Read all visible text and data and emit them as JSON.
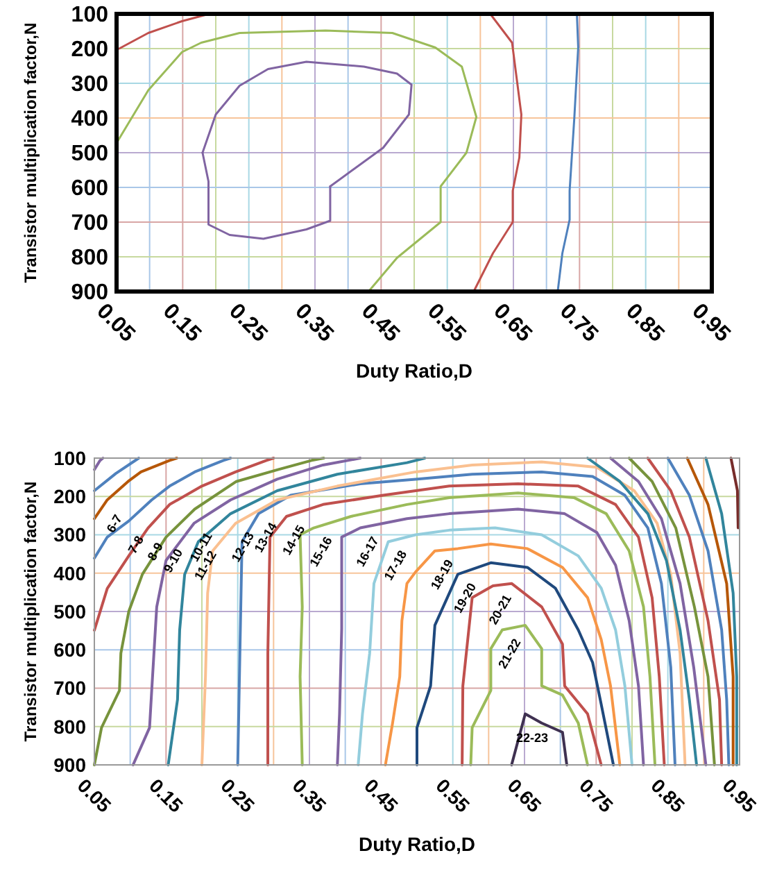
{
  "chart_data": [
    {
      "type": "line",
      "xlabel": "Duty Ratio,D",
      "ylabel": "Transistor multiplication factor,N",
      "xlim": [
        0.05,
        0.95
      ],
      "ylim": [
        900,
        100
      ],
      "xticks": [
        0.05,
        {
          "value": 0.1,
          "label": null
        },
        0.15,
        {
          "value": 0.2,
          "label": null
        },
        0.25,
        {
          "value": 0.3,
          "label": null
        },
        0.35,
        {
          "value": 0.4,
          "label": null
        },
        0.45,
        {
          "value": 0.5,
          "label": null
        },
        0.55,
        {
          "value": 0.6,
          "label": null
        },
        0.65,
        {
          "value": 0.7,
          "label": null
        },
        0.75,
        {
          "value": 0.8,
          "label": null
        },
        0.85,
        {
          "value": 0.9,
          "label": null
        },
        0.95
      ],
      "yticks": [
        100,
        200,
        300,
        400,
        500,
        600,
        700,
        800,
        900
      ],
      "grid": true,
      "series": [
        {
          "color": "#c0504d",
          "x": [
            0.054,
            0.098,
            0.149,
            0.19
          ],
          "values": [
            200,
            155,
            121,
            100
          ]
        },
        {
          "color": "#9bbb59",
          "x": [
            0.05,
            0.098,
            0.149,
            0.178,
            0.236,
            0.366,
            0.467,
            0.532,
            0.572,
            0.594,
            0.579,
            0.54,
            0.54,
            0.474,
            0.431
          ],
          "values": [
            472,
            320,
            210,
            183,
            155,
            148,
            155,
            197,
            252,
            397,
            500,
            597,
            700,
            803,
            900
          ]
        },
        {
          "color": "#8064a2",
          "x": [
            0.18,
            0.2,
            0.236,
            0.279,
            0.337,
            0.424,
            0.474,
            0.496,
            0.492,
            0.453,
            0.373
          ],
          "values": [
            500,
            390,
            307,
            259,
            238,
            252,
            272,
            304,
            390,
            486,
            597
          ]
        },
        {
          "color": "#8064a2",
          "x": [
            0.373,
            0.373,
            0.337,
            0.272,
            0.221,
            0.189,
            0.189,
            0.18
          ],
          "values": [
            597,
            696,
            721,
            748,
            737,
            707,
            583,
            500
          ]
        },
        {
          "color": "#c0504d",
          "x": [
            0.615,
            0.648,
            0.662,
            0.659,
            0.649,
            0.649,
            0.619,
            0.59
          ],
          "values": [
            100,
            183,
            390,
            514,
            610,
            700,
            790,
            900
          ]
        },
        {
          "color": "#4f81bd",
          "x": [
            0.746,
            0.748,
            0.742,
            0.735,
            0.735,
            0.724,
            0.717
          ],
          "values": [
            100,
            197,
            403,
            610,
            693,
            790,
            900
          ]
        }
      ]
    },
    {
      "type": "line",
      "xlabel": "Duty Ratio,D",
      "ylabel": "Transistor multiplication factor,N",
      "xlim": [
        0.05,
        0.95
      ],
      "ylim": [
        900,
        100
      ],
      "xticks": [
        0.05,
        {
          "value": 0.1,
          "label": null
        },
        0.15,
        {
          "value": 0.2,
          "label": null
        },
        0.25,
        {
          "value": 0.3,
          "label": null
        },
        0.35,
        {
          "value": 0.4,
          "label": null
        },
        0.45,
        {
          "value": 0.5,
          "label": null
        },
        0.55,
        {
          "value": 0.6,
          "label": null
        },
        0.65,
        {
          "value": 0.7,
          "label": null
        },
        0.75,
        {
          "value": 0.8,
          "label": null
        },
        0.85,
        {
          "value": 0.9,
          "label": null
        },
        0.95
      ],
      "yticks": [
        100,
        200,
        300,
        400,
        500,
        600,
        700,
        800,
        900
      ],
      "grid": true,
      "series": [
        {
          "color": "#3f3151",
          "x": [
            0.632,
            0.651,
            0.674,
            0.703,
            0.709
          ],
          "values": [
            900,
            767,
            791,
            815,
            900
          ]
        },
        {
          "color": "#9bbb59",
          "x": [
            0.575,
            0.577,
            0.603,
            0.603,
            0.619,
            0.651,
            0.674,
            0.674,
            0.703,
            0.725,
            0.738
          ],
          "values": [
            900,
            803,
            706,
            597,
            548,
            536,
            597,
            694,
            718,
            791,
            900
          ]
        },
        {
          "color": "#c0504d",
          "x": [
            0.563,
            0.564,
            0.577,
            0.606,
            0.632,
            0.674,
            0.703,
            0.706,
            0.738,
            0.757
          ],
          "values": [
            900,
            694,
            464,
            433,
            427,
            488,
            585,
            694,
            767,
            900
          ]
        },
        {
          "color": "#1f497d",
          "x": [
            0.5,
            0.5,
            0.519,
            0.525,
            0.557,
            0.603,
            0.654,
            0.693,
            0.725,
            0.745,
            0.757,
            0.774
          ],
          "values": [
            900,
            803,
            694,
            536,
            403,
            373,
            385,
            439,
            548,
            633,
            742,
            900
          ]
        },
        {
          "color": "#f79646",
          "x": [
            0.456,
            0.466,
            0.476,
            0.479,
            0.486,
            0.498,
            0.525,
            0.557,
            0.603,
            0.654,
            0.703,
            0.738,
            0.757,
            0.77,
            0.783
          ],
          "values": [
            900,
            791,
            670,
            524,
            427,
            397,
            342,
            336,
            324,
            336,
            385,
            464,
            573,
            694,
            900
          ]
        },
        {
          "color": "#93cddd",
          "x": [
            0.418,
            0.424,
            0.434,
            0.44,
            0.46,
            0.498,
            0.545,
            0.609,
            0.674,
            0.725,
            0.757,
            0.777,
            0.79,
            0.8
          ],
          "values": [
            900,
            767,
            609,
            427,
            318,
            300,
            288,
            282,
            300,
            355,
            439,
            548,
            694,
            900
          ]
        },
        {
          "color": "#8064a2",
          "x": [
            0.389,
            0.392,
            0.395,
            0.395,
            0.421,
            0.486,
            0.545,
            0.641,
            0.706,
            0.751,
            0.777,
            0.796,
            0.809,
            0.816
          ],
          "values": [
            900,
            767,
            545,
            306,
            282,
            258,
            245,
            233,
            245,
            294,
            379,
            524,
            694,
            900
          ]
        },
        {
          "color": "#9bbb59",
          "x": [
            0.34,
            0.337,
            0.34,
            0.337,
            0.356,
            0.408,
            0.486,
            0.545,
            0.641,
            0.719,
            0.764,
            0.796,
            0.816,
            0.825,
            0.832
          ],
          "values": [
            900,
            670,
            488,
            300,
            282,
            252,
            221,
            203,
            191,
            203,
            245,
            342,
            488,
            670,
            900
          ]
        },
        {
          "color": "#c0504d",
          "x": [
            0.292,
            0.292,
            0.295,
            0.318,
            0.369,
            0.453,
            0.545,
            0.641,
            0.725,
            0.777,
            0.809,
            0.828,
            0.838,
            0.845
          ],
          "values": [
            900,
            609,
            306,
            252,
            221,
            197,
            173,
            167,
            173,
            221,
            306,
            464,
            670,
            900
          ]
        },
        {
          "color": "#4f81bd",
          "x": [
            0.25,
            0.253,
            0.256,
            0.279,
            0.324,
            0.421,
            0.498,
            0.577,
            0.674,
            0.745,
            0.79,
            0.822,
            0.841,
            0.854,
            0.86
          ],
          "values": [
            900,
            609,
            318,
            245,
            197,
            167,
            155,
            142,
            136,
            148,
            197,
            282,
            427,
            645,
            900
          ]
        },
        {
          "color": "#fac090",
          "x": [
            0.2,
            0.205,
            0.208,
            0.215,
            0.247,
            0.305,
            0.389,
            0.498,
            0.577,
            0.674,
            0.751,
            0.803,
            0.835,
            0.854,
            0.867,
            0.874
          ],
          "values": [
            900,
            670,
            452,
            342,
            270,
            209,
            173,
            136,
            118,
            110,
            124,
            185,
            270,
            403,
            609,
            900
          ]
        },
        {
          "color": "#31859c",
          "x": [
            0.153,
            0.166,
            0.169,
            0.176,
            0.195,
            0.24,
            0.305,
            0.389,
            0.486,
            0.511
          ],
          "values": [
            900,
            730,
            548,
            403,
            318,
            245,
            185,
            142,
            112,
            100
          ]
        },
        {
          "color": "#31859c",
          "x": [
            0.738,
            0.783,
            0.822,
            0.848,
            0.867,
            0.88,
            0.89
          ],
          "values": [
            100,
            161,
            245,
            367,
            548,
            730,
            900
          ]
        },
        {
          "color": "#8064a2",
          "x": [
            0.104,
            0.127,
            0.13,
            0.137,
            0.15,
            0.189,
            0.24,
            0.305,
            0.369,
            0.421
          ],
          "values": [
            900,
            803,
            706,
            488,
            367,
            270,
            209,
            155,
            118,
            100
          ]
        },
        {
          "color": "#8064a2",
          "x": [
            0.77,
            0.809,
            0.841,
            0.867,
            0.886,
            0.903
          ],
          "values": [
            100,
            161,
            258,
            427,
            645,
            900
          ]
        },
        {
          "color": "#77933c",
          "x": [
            0.05,
            0.06,
            0.085,
            0.087,
            0.098,
            0.117,
            0.15,
            0.19,
            0.248,
            0.306,
            0.353,
            0.37
          ],
          "values": [
            900,
            803,
            706,
            609,
            500,
            403,
            306,
            233,
            161,
            130,
            106,
            100
          ]
        },
        {
          "color": "#77933c",
          "x": [
            0.796,
            0.828,
            0.861,
            0.887,
            0.906,
            0.915
          ],
          "values": [
            100,
            161,
            282,
            488,
            670,
            900
          ]
        },
        {
          "color": "#c0504d",
          "x": [
            0.05,
            0.068,
            0.098,
            0.125,
            0.155,
            0.2,
            0.247,
            0.29,
            0.3
          ],
          "values": [
            549,
            440,
            355,
            282,
            221,
            173,
            136,
            106,
            100
          ]
        },
        {
          "color": "#c0504d",
          "x": [
            0.822,
            0.854,
            0.88,
            0.906,
            0.922,
            0.925
          ],
          "values": [
            100,
            185,
            306,
            524,
            730,
            900
          ]
        },
        {
          "color": "#4f81bd",
          "x": [
            0.05,
            0.068,
            0.098,
            0.13,
            0.155,
            0.19,
            0.23,
            0.24
          ],
          "values": [
            361,
            306,
            264,
            209,
            173,
            136,
            106,
            100
          ]
        },
        {
          "color": "#4f81bd",
          "x": [
            0.85,
            0.88,
            0.906,
            0.925,
            0.932,
            0.935
          ],
          "values": [
            100,
            197,
            342,
            548,
            730,
            900
          ]
        },
        {
          "color": "#b65708",
          "x": [
            0.05,
            0.068,
            0.097,
            0.115,
            0.155,
            0.165
          ],
          "values": [
            258,
            209,
            161,
            136,
            106,
            100
          ]
        },
        {
          "color": "#b65708",
          "x": [
            0.877,
            0.906,
            0.932,
            0.941,
            0.941
          ],
          "values": [
            100,
            221,
            427,
            670,
            900
          ]
        },
        {
          "color": "#4f81bd",
          "x": [
            0.05,
            0.08,
            0.112
          ],
          "values": [
            185,
            140,
            100
          ]
        },
        {
          "color": "#31859c",
          "x": [
            0.903,
            0.925,
            0.941,
            0.946,
            0.946
          ],
          "values": [
            100,
            245,
            452,
            670,
            900
          ]
        },
        {
          "color": "#8064a2",
          "x": [
            0.05,
            0.058,
            0.062
          ],
          "values": [
            130,
            106,
            100
          ]
        },
        {
          "color": "#772c2a",
          "x": [
            0.938,
            0.947,
            0.948
          ],
          "values": [
            100,
            185,
            282
          ]
        }
      ],
      "annotations": [
        {
          "text": "6-7",
          "x": 0.068,
          "y": 209
        },
        {
          "text": "7-8",
          "x": 0.098,
          "y": 264
        },
        {
          "text": "8-9",
          "x": 0.125,
          "y": 282
        },
        {
          "text": "9-10",
          "x": 0.15,
          "y": 306
        },
        {
          "text": "10-11",
          "x": 0.189,
          "y": 270
        },
        {
          "text": "11-12",
          "x": 0.195,
          "y": 318
        },
        {
          "text": "12-13",
          "x": 0.247,
          "y": 270
        },
        {
          "text": "13-14",
          "x": 0.279,
          "y": 245
        },
        {
          "text": "14-15",
          "x": 0.318,
          "y": 252
        },
        {
          "text": "15-16",
          "x": 0.356,
          "y": 282
        },
        {
          "text": "16-17",
          "x": 0.421,
          "y": 282
        },
        {
          "text": "17-18",
          "x": 0.46,
          "y": 318
        },
        {
          "text": "18-19",
          "x": 0.525,
          "y": 342
        },
        {
          "text": "19-20",
          "x": 0.557,
          "y": 403
        },
        {
          "text": "20-21",
          "x": 0.606,
          "y": 433
        },
        {
          "text": "21-22",
          "x": 0.619,
          "y": 548
        },
        {
          "text": "22-23",
          "x": 0.651,
          "y": 767
        }
      ]
    }
  ]
}
